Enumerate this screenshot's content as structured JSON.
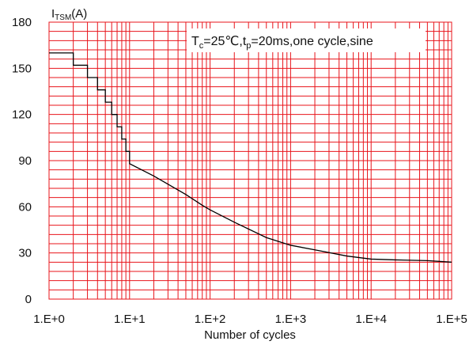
{
  "chart_data": {
    "type": "line",
    "xscale": "log",
    "xlim": [
      1,
      100000
    ],
    "ylim": [
      0,
      180
    ],
    "yticks": [
      0,
      30,
      60,
      90,
      120,
      150,
      180
    ],
    "xtick_values": [
      1,
      10,
      100,
      1000,
      10000,
      100000
    ],
    "xtick_labels": [
      "1.E+0",
      "1.E+1",
      "1.E+2",
      "1.E+3",
      "1.E+4",
      "1.E+5"
    ],
    "ylabel_main": "I",
    "ylabel_sub": "TSM",
    "ylabel_unit": "(A)",
    "xlabel": "Number of cycles",
    "annotation": {
      "t": "T",
      "t_sub": "c",
      "mid": "=25℃,t",
      "p_sub": "p",
      "tail": "=20ms,one cycle,sine"
    },
    "grid": true,
    "grid_color": "#e8141b",
    "line_color": "#000000",
    "series": [
      {
        "x": [
          1,
          2,
          2,
          3,
          3,
          4,
          4,
          5,
          5,
          6,
          6,
          7,
          7,
          8,
          8,
          9,
          9,
          10,
          10,
          20,
          50,
          80,
          100,
          200,
          500,
          1000,
          2000,
          5000,
          10000,
          20000,
          50000,
          100000
        ],
        "y": [
          160,
          160,
          152,
          152,
          144,
          144,
          136,
          136,
          128,
          128,
          120,
          120,
          112,
          112,
          104,
          104,
          96,
          96,
          88,
          80,
          68,
          61,
          58,
          50,
          40,
          35,
          32,
          28,
          26,
          25.5,
          25,
          24
        ]
      }
    ]
  }
}
